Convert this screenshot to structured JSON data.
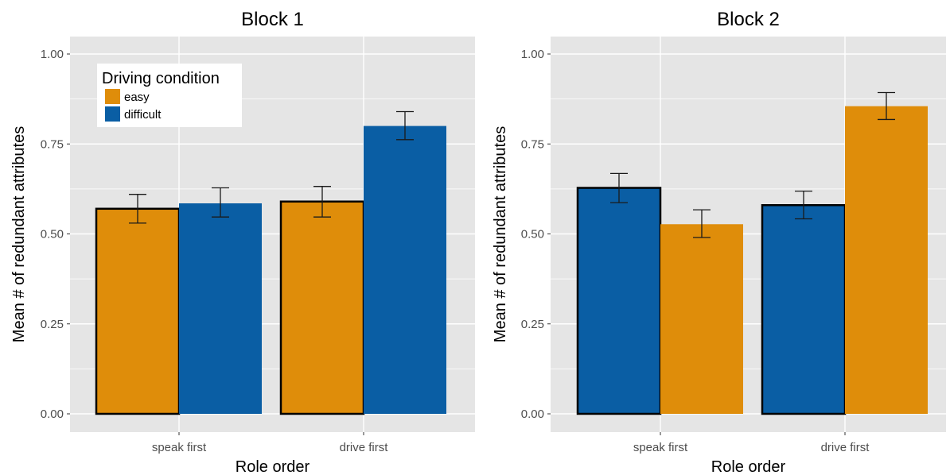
{
  "colors": {
    "easy": "#df8d0a",
    "difficult": "#0a5ea4",
    "panel_background": "#e5e5e5",
    "grid": "#ffffff",
    "tick_text": "#4d4d4d"
  },
  "chart_data": [
    {
      "type": "bar",
      "title": "Block 1",
      "xlabel": "Role order",
      "ylabel": "Mean # of redundant attributes",
      "categories": [
        "speak first",
        "drive first"
      ],
      "ylim": [
        0,
        1.05
      ],
      "yticks": [
        "0.00",
        "0.25",
        "0.50",
        "0.75",
        "1.00"
      ],
      "grid": true,
      "legend": {
        "title": "Driving condition",
        "position": "top-left",
        "entries": [
          {
            "label": "easy",
            "color": "#df8d0a"
          },
          {
            "label": "difficult",
            "color": "#0a5ea4"
          }
        ]
      },
      "series": [
        {
          "name": "easy",
          "color": "#df8d0a",
          "values": [
            0.57,
            0.59
          ],
          "err_low": [
            0.53,
            0.547
          ],
          "err_high": [
            0.61,
            0.632
          ],
          "outlined": [
            true,
            true
          ]
        },
        {
          "name": "difficult",
          "color": "#0a5ea4",
          "values": [
            0.585,
            0.8
          ],
          "err_low": [
            0.547,
            0.762
          ],
          "err_high": [
            0.628,
            0.84
          ],
          "outlined": [
            false,
            false
          ]
        }
      ]
    },
    {
      "type": "bar",
      "title": "Block 2",
      "xlabel": "Role order",
      "ylabel": "Mean # of redundant attributes",
      "categories": [
        "speak first",
        "drive first"
      ],
      "ylim": [
        0,
        1.05
      ],
      "yticks": [
        "0.00",
        "0.25",
        "0.50",
        "0.75",
        "1.00"
      ],
      "grid": true,
      "series": [
        {
          "name": "difficult",
          "color": "#0a5ea4",
          "values": [
            0.628,
            0.58
          ],
          "err_low": [
            0.587,
            0.542
          ],
          "err_high": [
            0.668,
            0.619
          ],
          "outlined": [
            true,
            true
          ]
        },
        {
          "name": "easy",
          "color": "#df8d0a",
          "values": [
            0.527,
            0.855
          ],
          "err_low": [
            0.49,
            0.818
          ],
          "err_high": [
            0.567,
            0.893
          ],
          "outlined": [
            false,
            false
          ]
        }
      ]
    }
  ]
}
